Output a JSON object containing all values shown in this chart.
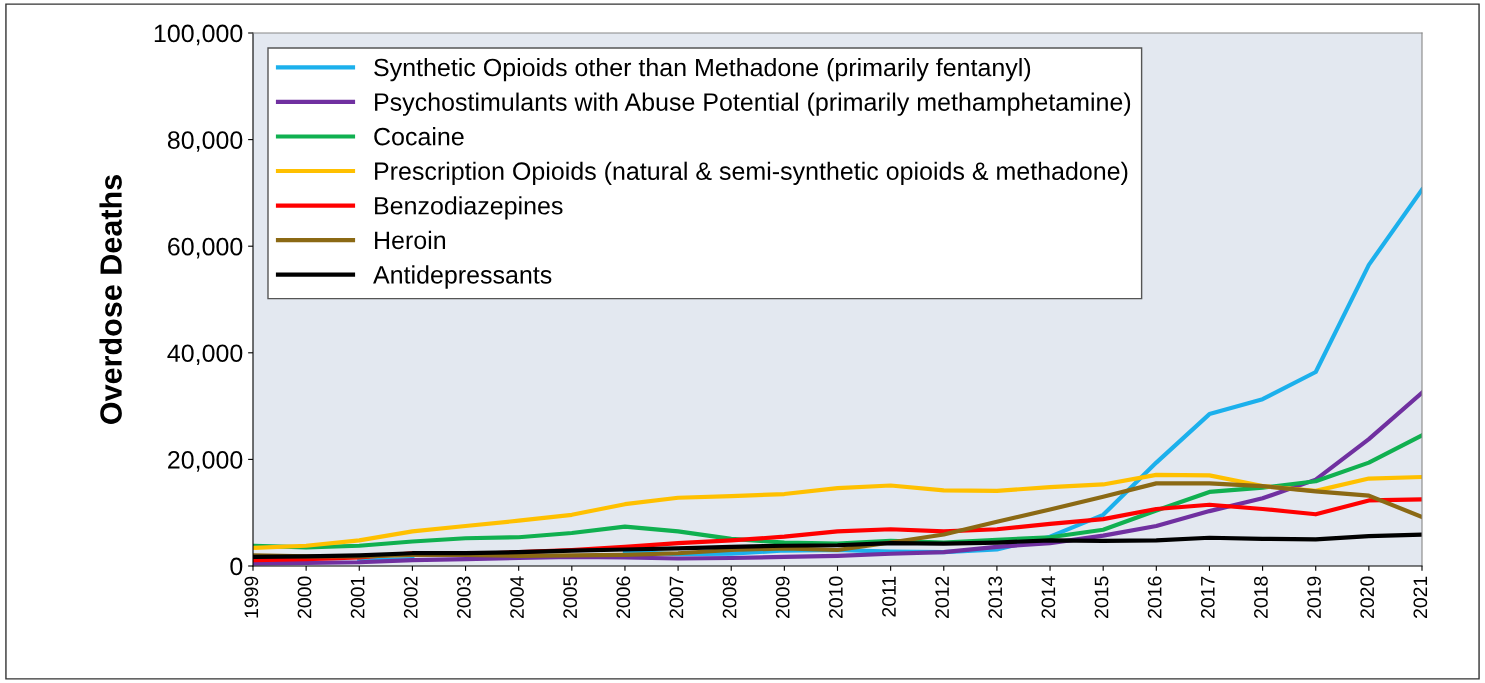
{
  "chart_data": {
    "type": "line",
    "ylabel": "Overdose Deaths",
    "x": [
      1999,
      2000,
      2001,
      2002,
      2003,
      2004,
      2005,
      2006,
      2007,
      2008,
      2009,
      2010,
      2011,
      2012,
      2013,
      2014,
      2015,
      2016,
      2017,
      2018,
      2019,
      2020,
      2021
    ],
    "xlim": [
      1999,
      2021
    ],
    "xticks": [
      1999,
      2000,
      2001,
      2002,
      2003,
      2004,
      2005,
      2006,
      2007,
      2008,
      2009,
      2010,
      2011,
      2012,
      2013,
      2014,
      2015,
      2016,
      2017,
      2018,
      2019,
      2020,
      2021
    ],
    "ylim": [
      0,
      100000
    ],
    "yticks": [
      {
        "value": 0,
        "label": "0"
      },
      {
        "value": 20000,
        "label": "20,000"
      },
      {
        "value": 40000,
        "label": "40,000"
      },
      {
        "value": 60000,
        "label": "60,000"
      },
      {
        "value": 80000,
        "label": "80,000"
      },
      {
        "value": 100000,
        "label": "100,000"
      }
    ],
    "grid": false,
    "legend": "top left",
    "marker": "none",
    "line_style": "solid",
    "series": [
      {
        "name": "Synthetic Opioids other than Methadone (primarily fentanyl)",
        "color": "#1cb0ec",
        "values": [
          null,
          null,
          1000,
          1300,
          null,
          null,
          null,
          2700,
          2200,
          2300,
          2900,
          3000,
          2700,
          2600,
          3100,
          5500,
          9600,
          19400,
          28500,
          31300,
          36400,
          56500,
          70600
        ]
      },
      {
        "name": "Psychostimulants with Abuse Potential (primarily methamphetamine)",
        "color": "#7030a0",
        "values": [
          500,
          600,
          700,
          1100,
          1300,
          1500,
          1700,
          1600,
          1400,
          1500,
          1700,
          1900,
          2300,
          2600,
          3600,
          4300,
          5700,
          7500,
          10300,
          12700,
          16200,
          23800,
          32500
        ]
      },
      {
        "name": "Cocaine",
        "color": "#10b050",
        "values": [
          3800,
          3500,
          3800,
          4600,
          5200,
          5400,
          6200,
          7400,
          6500,
          5100,
          4400,
          4200,
          4700,
          4400,
          4900,
          5400,
          6800,
          10400,
          13900,
          14700,
          15900,
          19400,
          24500
        ]
      },
      {
        "name": "Prescription Opioids (natural & semi-synthetic opioids & methadone)",
        "color": "#ffc000",
        "values": [
          3400,
          3800,
          4800,
          6500,
          7500,
          8500,
          9600,
          11600,
          12800,
          13100,
          13500,
          14600,
          15100,
          14200,
          14100,
          14800,
          15300,
          17100,
          17000,
          15000,
          14100,
          16400,
          16700
        ]
      },
      {
        "name": "Benzodiazepines",
        "color": "#ff0000",
        "values": [
          1100,
          1300,
          1600,
          2400,
          2200,
          2600,
          3000,
          3600,
          4300,
          4800,
          5500,
          6500,
          6900,
          6500,
          6900,
          7900,
          8800,
          10700,
          11500,
          10700,
          9700,
          12300,
          12500
        ]
      },
      {
        "name": "Heroin",
        "color": "#8b6914",
        "values": [
          2000,
          1800,
          1800,
          2100,
          2100,
          1900,
          2000,
          2100,
          2400,
          3000,
          3300,
          3000,
          4400,
          5900,
          8300,
          10600,
          13000,
          15500,
          15500,
          15000,
          14000,
          13200,
          9200
        ]
      },
      {
        "name": "Antidepressants",
        "color": "#000000",
        "values": [
          1700,
          1800,
          2000,
          2400,
          2400,
          2600,
          2900,
          3100,
          3300,
          3600,
          3800,
          3900,
          4300,
          4200,
          4400,
          4800,
          4700,
          4800,
          5300,
          5100,
          5000,
          5600,
          5900
        ]
      }
    ]
  }
}
